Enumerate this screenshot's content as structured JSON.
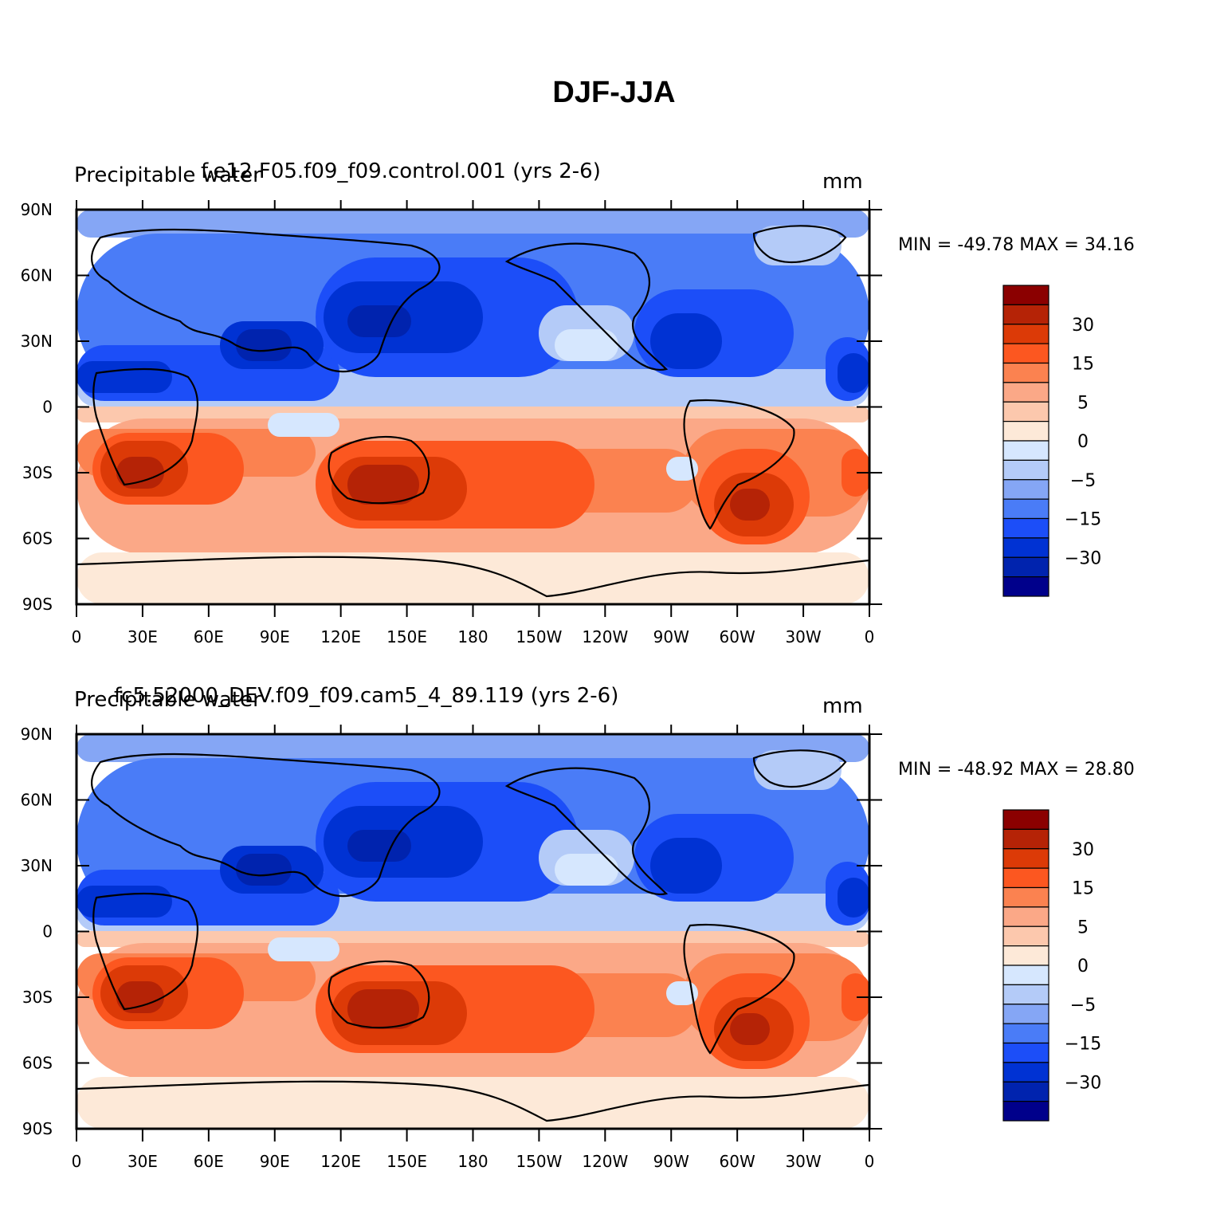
{
  "figure": {
    "title": "DJF-JJA",
    "units": "mm",
    "variable": "Precipitable water",
    "lat_labels": [
      "90N",
      "60N",
      "30N",
      "0",
      "30S",
      "60S",
      "90S"
    ],
    "lon_labels": [
      "0",
      "30E",
      "60E",
      "90E",
      "120E",
      "150E",
      "180",
      "150W",
      "120W",
      "90W",
      "60W",
      "30W",
      "0"
    ],
    "colorbar": {
      "levels": [
        -40,
        -35,
        -30,
        -25,
        -20,
        -15,
        -10,
        -5,
        -2,
        0,
        2,
        5,
        10,
        15,
        20,
        25,
        30,
        35
      ],
      "labels": [
        "30",
        "15",
        "5",
        "0",
        "-5",
        "-15",
        "-30"
      ],
      "colors": [
        "#00008b",
        "#0023ae",
        "#0032d3",
        "#1c4ef8",
        "#4a7cf7",
        "#85a6f5",
        "#b4cbf8",
        "#d6e7fe",
        "#fde9d8",
        "#fcc8ad",
        "#fba887",
        "#fb8250",
        "#fc5720",
        "#dc3a07",
        "#b52306",
        "#8b0000"
      ]
    }
  },
  "panels": [
    {
      "id": "panel-1",
      "case": "f.e12.F05.f09_f09.control.001 (yrs 2-6)",
      "variable": "Precipitable water",
      "units": "mm",
      "min_label": "MIN = ",
      "min": "-49.78",
      "max_label": "MAX = ",
      "max": "34.16"
    },
    {
      "id": "panel-2",
      "case": "fc5.52000_DEV.f09_f09.cam5_4_89.119 (yrs 2-6)",
      "variable": "Precipitable water",
      "units": "mm",
      "min_label": "MIN = ",
      "min": "-48.92",
      "max_label": "MAX = ",
      "max": "28.80"
    }
  ]
}
